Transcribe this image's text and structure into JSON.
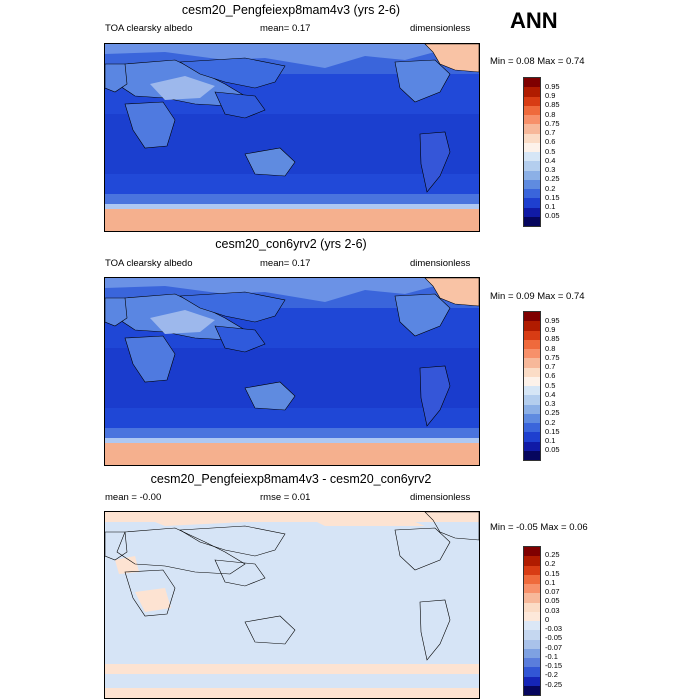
{
  "season": "ANN",
  "panels": [
    {
      "title": "cesm20_Pengfeiexp8mam4v3 (yrs 2-6)",
      "left_label": "TOA clearsky albedo",
      "mean_text": "mean=   0.17",
      "units": "dimensionless",
      "minmax": "Min =   0.08 Max =   0.74",
      "levels": [
        "0.95",
        "0.9",
        "0.85",
        "0.8",
        "0.75",
        "0.7",
        "0.6",
        "0.5",
        "0.4",
        "0.3",
        "0.25",
        "0.2",
        "0.15",
        "0.1",
        "0.05"
      ]
    },
    {
      "title": "cesm20_con6yrv2 (yrs 2-6)",
      "left_label": "TOA clearsky albedo",
      "mean_text": "mean=   0.17",
      "units": "dimensionless",
      "minmax": "Min =   0.09 Max =   0.74",
      "levels": [
        "0.95",
        "0.9",
        "0.85",
        "0.8",
        "0.75",
        "0.7",
        "0.6",
        "0.5",
        "0.4",
        "0.3",
        "0.25",
        "0.2",
        "0.15",
        "0.1",
        "0.05"
      ]
    },
    {
      "title": "cesm20_Pengfeiexp8mam4v3 - cesm20_con6yrv2",
      "left_label": "mean =  -0.00",
      "mean_text": "rmse =   0.01",
      "units": "dimensionless",
      "minmax": "Min =  -0.05 Max =   0.06",
      "levels": [
        "0.25",
        "0.2",
        "0.15",
        "0.1",
        "0.07",
        "0.05",
        "0.03",
        "0",
        "-0.03",
        "-0.05",
        "-0.07",
        "-0.1",
        "-0.15",
        "-0.2",
        "-0.25"
      ]
    }
  ],
  "colors": {
    "abs_scale": [
      "#7f0000",
      "#b01b00",
      "#d83c14",
      "#ef6a3c",
      "#f7906a",
      "#f7b89a",
      "#fbdcc6",
      "#fdf2ea",
      "#d6e6f6",
      "#b4ceee",
      "#8cb0e6",
      "#5f8be0",
      "#3a65db",
      "#1e3fcf",
      "#101aa6",
      "#06065e"
    ],
    "diff_scale": [
      "#7f0000",
      "#b01b00",
      "#d83c14",
      "#ef6a3c",
      "#f7906a",
      "#f7b89a",
      "#fbdcc6",
      "#fde8da",
      "#dbe7f6",
      "#c5d7f0",
      "#a9c2ea",
      "#7ea1e2",
      "#5a7ddc",
      "#3256d5",
      "#1525b8",
      "#06065e"
    ],
    "ocean": "#1f4fd6",
    "land_dark": "#2e5de0",
    "land_mid": "#6b92e6",
    "land_light": "#aec8f2",
    "ice": "#f5b08e",
    "ice_light": "#fbd7c1",
    "diff_bg": "#d6e4f6",
    "diff_pos": "#fde3d2"
  }
}
